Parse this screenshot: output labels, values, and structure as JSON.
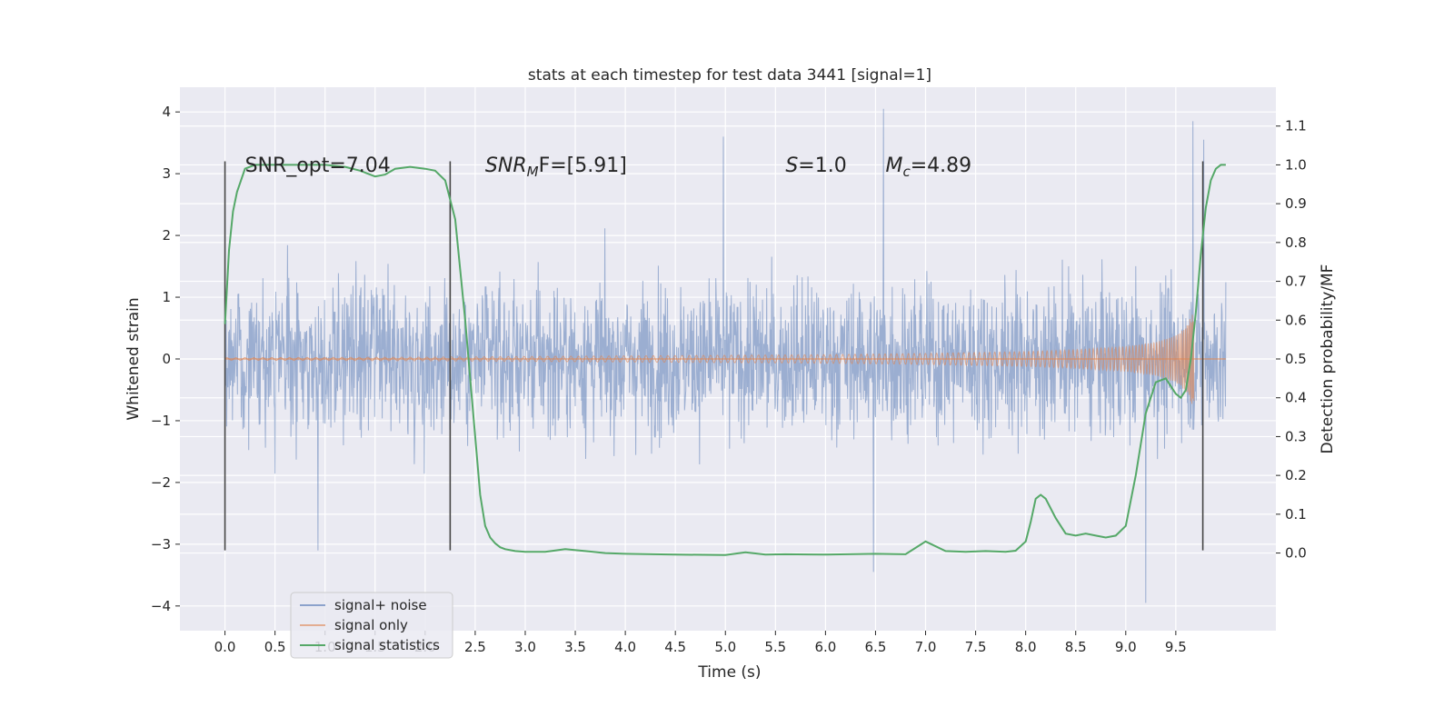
{
  "chart_data": {
    "type": "line",
    "title": "stats at each timestep for test data 3441 [signal=1]",
    "xlabel": "Time (s)",
    "ylabel_left": "Whitened strain",
    "ylabel_right": "Detection probability/MF",
    "xlim": [
      -0.45,
      10.5
    ],
    "ylim_left": [
      -4.4,
      4.4
    ],
    "ylim_right": [
      -0.2,
      1.2
    ],
    "x_ticks": [
      "0.0",
      "0.5",
      "1.0",
      "1.5",
      "2.0",
      "2.5",
      "3.0",
      "3.5",
      "4.0",
      "4.5",
      "5.0",
      "5.5",
      "6.0",
      "6.5",
      "7.0",
      "7.5",
      "8.0",
      "8.5",
      "9.0",
      "9.5"
    ],
    "y_ticks_left": [
      "4",
      "3",
      "2",
      "1",
      "0",
      "−1",
      "−2",
      "−3",
      "−4"
    ],
    "y_ticks_right": [
      "1.1",
      "1.0",
      "0.9",
      "0.8",
      "0.7",
      "0.6",
      "0.5",
      "0.4",
      "0.3",
      "0.2",
      "0.1",
      "0.0"
    ],
    "grid": true,
    "legend_position": "bottom-left",
    "annotations": [
      {
        "text": "SNR_opt=7.04",
        "x": 0.2,
        "y": 3.15
      },
      {
        "prefix": "SNR",
        "sub": "M",
        "suffix": "F=[5.91]",
        "x": 2.6,
        "y": 3.15
      },
      {
        "prefix": "S",
        "suffix": "=1.0",
        "x": 5.6,
        "y": 3.15
      },
      {
        "prefix": "M",
        "sub": "c",
        "suffix": "=4.89",
        "x": 6.6,
        "y": 3.15
      }
    ],
    "vertical_markers": [
      {
        "x": 0.0,
        "ymin": -3.1,
        "ymax": 3.2
      },
      {
        "x": 2.25,
        "ymin": -3.1,
        "ymax": 3.2
      },
      {
        "x": 9.77,
        "ymin": -3.1,
        "ymax": 3.2
      }
    ],
    "series": [
      {
        "name": "signal+ noise",
        "color": "#4c72b0",
        "axis": "left",
        "x_range": [
          0.0,
          10.0
        ],
        "band_typical": [
          -1.2,
          1.3
        ],
        "extremes": [
          {
            "x": 6.58,
            "y": 4.05
          },
          {
            "x": 4.98,
            "y": 3.6
          },
          {
            "x": 9.67,
            "y": 3.85
          },
          {
            "x": 9.78,
            "y": 3.55
          },
          {
            "x": 6.48,
            "y": -3.45
          },
          {
            "x": 9.2,
            "y": -3.95
          },
          {
            "x": 0.93,
            "y": -3.1
          }
        ]
      },
      {
        "name": "signal only",
        "color": "#dd8452",
        "axis": "left",
        "x_range": [
          0.0,
          9.68
        ],
        "envelope": {
          "x": [
            0,
            2,
            4,
            5,
            6,
            7,
            8,
            8.5,
            9,
            9.3,
            9.5,
            9.6,
            9.68
          ],
          "amp": [
            0.02,
            0.03,
            0.05,
            0.06,
            0.07,
            0.09,
            0.12,
            0.15,
            0.2,
            0.27,
            0.38,
            0.52,
            0.8
          ]
        }
      },
      {
        "name": "signal statistics",
        "color": "#55a868",
        "axis": "right",
        "x": [
          0.0,
          0.04,
          0.08,
          0.12,
          0.2,
          0.3,
          0.5,
          0.8,
          1.0,
          1.2,
          1.35,
          1.5,
          1.6,
          1.7,
          1.85,
          2.0,
          2.1,
          2.2,
          2.3,
          2.4,
          2.45,
          2.5,
          2.55,
          2.6,
          2.65,
          2.7,
          2.75,
          2.8,
          2.9,
          3.0,
          3.2,
          3.4,
          3.6,
          3.8,
          4.0,
          4.5,
          5.0,
          5.2,
          5.4,
          5.6,
          6.0,
          6.5,
          6.8,
          7.0,
          7.2,
          7.4,
          7.6,
          7.8,
          7.9,
          8.0,
          8.05,
          8.1,
          8.15,
          8.2,
          8.3,
          8.4,
          8.5,
          8.6,
          8.7,
          8.8,
          8.9,
          9.0,
          9.1,
          9.2,
          9.3,
          9.4,
          9.5,
          9.55,
          9.6,
          9.65,
          9.7,
          9.75,
          9.8,
          9.85,
          9.9,
          9.95,
          10.0
        ],
        "values": [
          0.59,
          0.78,
          0.88,
          0.93,
          0.99,
          1.0,
          1.0,
          1.0,
          1.0,
          0.995,
          0.985,
          0.97,
          0.975,
          0.99,
          0.995,
          0.99,
          0.985,
          0.96,
          0.86,
          0.6,
          0.45,
          0.3,
          0.15,
          0.07,
          0.04,
          0.025,
          0.015,
          0.01,
          0.005,
          0.003,
          0.003,
          0.01,
          0.005,
          0.0,
          -0.002,
          -0.004,
          -0.005,
          0.002,
          -0.004,
          -0.003,
          -0.004,
          -0.002,
          -0.003,
          0.03,
          0.005,
          0.003,
          0.005,
          0.003,
          0.006,
          0.03,
          0.08,
          0.14,
          0.15,
          0.14,
          0.09,
          0.05,
          0.045,
          0.05,
          0.045,
          0.04,
          0.045,
          0.07,
          0.2,
          0.36,
          0.44,
          0.45,
          0.41,
          0.4,
          0.42,
          0.5,
          0.62,
          0.77,
          0.89,
          0.96,
          0.99,
          1.0,
          1.0
        ]
      }
    ]
  }
}
